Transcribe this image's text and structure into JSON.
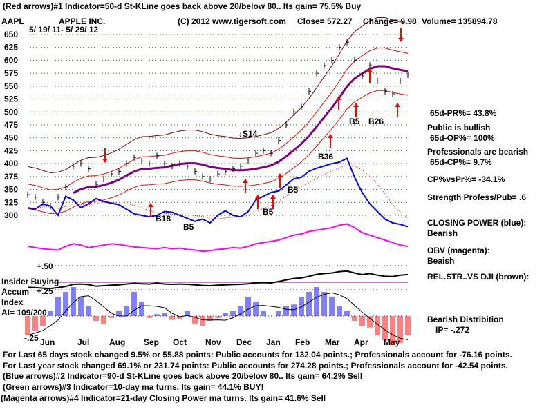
{
  "header": {
    "indicator1": "(Red arrows)#1 Indicator=50-d St-KLine goes back above 20/below 80.. Its gain= 75.5% Buy",
    "ticker": "AAPL",
    "company": "APPLE INC.",
    "copyright": "(C) 2012 www.tigersoft.com",
    "close": "Close=  572.27",
    "change": "Change= 9.98",
    "volume": "Volume= 135894.78",
    "date_range": "5/ 19/ 11- 5/ 29/ 12"
  },
  "right_panel": {
    "pr": "65d-PR%= 43.8%",
    "public": "Public is bullish",
    "op": "65d-OP%= 100%",
    "prof": "Professionals are bearish",
    "cp": "65d-CP%= 9.7%",
    "cpvspr": "CP%vsPr%= -34.1%",
    "strength": "Strength Profess/Pub= .6",
    "cp_title": "CLOSING POWER (blue):",
    "cp_state": "Bearish",
    "obv_title": "OBV (magenta):",
    "obv_state": "Beaish",
    "relstr": "REL.STR..VS DJI (brown):",
    "dist": "Bearish Distribition",
    "ip": "IP= -.272"
  },
  "left_panel": {
    "insider": "Insider Buying",
    "accum": "Accum",
    "index": "Index",
    "ai": "AI= 109/200",
    "plus50": "+.50",
    "plus25": "+.25",
    "minus25": "-.25"
  },
  "footer": [
    "For Last 65 days stock changed  9.5% or  55.88 points:  Public accounts for  132.04 points.;  Professionals account for -76.16 points.",
    "For Last year stock changed  69.1% or  231.74 points:  Public accounts for  274.28 points.;  Professionals account for -42.54 points.",
    "(Blue arrows)#2 Indicator=90-d St-KLine goes back above 20/below 80.. Its gain= 64.2% Sell",
    "(Green arrows)#3 Indicator=10-day ma turns. Its gain= 44.1% BUY!",
    "(Magenta arrows)#4 Indicator=21-day Closing Power ma turns. Its gain= 41.6% Sell"
  ],
  "colors": {
    "price": "#000000",
    "ma": "#800080",
    "band": "#ff0000",
    "outer_band": "#800000",
    "cp": "#0000ff",
    "obv": "#ff00ff",
    "grid": "#008000",
    "ai_pos": "#0000ff",
    "ai_neg": "#ff0000"
  },
  "chart_data": {
    "type": "line",
    "title": "AAPL APPLE INC.",
    "ylim": [
      300,
      650
    ],
    "yticks": [
      650,
      625,
      600,
      575,
      550,
      525,
      500,
      475,
      450,
      425,
      400,
      375,
      350,
      325,
      300
    ],
    "months": [
      "Jun",
      "Jul",
      "Aug",
      "Sep",
      "Oct",
      "Nov",
      "Dec",
      "Jan",
      "Feb",
      "Mar",
      "Apr",
      "May"
    ],
    "price_weekly": [
      340,
      335,
      325,
      318,
      335,
      355,
      395,
      400,
      390,
      360,
      370,
      380,
      385,
      400,
      412,
      405,
      400,
      415,
      400,
      395,
      400,
      395,
      385,
      375,
      370,
      380,
      385,
      390,
      395,
      405,
      420,
      425,
      420,
      445,
      475,
      500,
      510,
      540,
      575,
      590,
      600,
      625,
      635,
      600,
      570,
      590,
      560,
      540,
      535,
      560,
      572
    ],
    "closing_power": [
      40,
      38,
      45,
      42,
      30,
      55,
      50,
      40,
      45,
      52,
      48,
      46,
      44,
      38,
      32,
      30,
      28,
      30,
      35,
      34,
      30,
      26,
      22,
      25,
      20,
      30,
      36,
      30,
      28,
      35,
      50,
      55,
      60,
      62,
      70,
      78,
      80,
      88,
      92,
      95,
      98,
      100,
      105,
      80,
      60,
      45,
      35,
      25,
      20,
      18,
      15
    ],
    "obv": [
      20,
      18,
      16,
      15,
      14,
      20,
      24,
      22,
      18,
      20,
      22,
      24,
      23,
      21,
      19,
      18,
      17,
      16,
      18,
      16,
      17,
      15,
      14,
      12,
      13,
      15,
      16,
      18,
      17,
      20,
      24,
      26,
      28,
      30,
      34,
      38,
      40,
      44,
      46,
      48,
      50,
      54,
      56,
      50,
      42,
      38,
      34,
      30,
      26,
      22,
      20
    ],
    "accum_index": [
      -0.2,
      -0.15,
      -0.1,
      0.05,
      0.2,
      0.25,
      0.3,
      0.2,
      0.1,
      -0.05,
      -0.08,
      -0.02,
      0.05,
      0.1,
      0.25,
      0.15,
      -0.02,
      0.02,
      0.03,
      -0.04,
      -0.03,
      0.05,
      -0.08,
      -0.1,
      -0.05,
      -0.02,
      0.03,
      0.05,
      0.1,
      0.2,
      0.15,
      0.05,
      0.0,
      0.05,
      0.1,
      0.12,
      0.2,
      0.25,
      0.3,
      0.25,
      0.2,
      0.1,
      0.05,
      -0.05,
      -0.1,
      -0.12,
      -0.2,
      -0.25,
      -0.3,
      -0.28,
      -0.2
    ],
    "signals": [
      {
        "label": "↓S14"
      },
      {
        "label": "B5"
      },
      {
        "label": "B26"
      },
      {
        "label": "B36"
      },
      {
        "label": "B5"
      },
      {
        "label": "B5"
      },
      {
        "label": "B18"
      },
      {
        "label": "B5"
      }
    ]
  }
}
